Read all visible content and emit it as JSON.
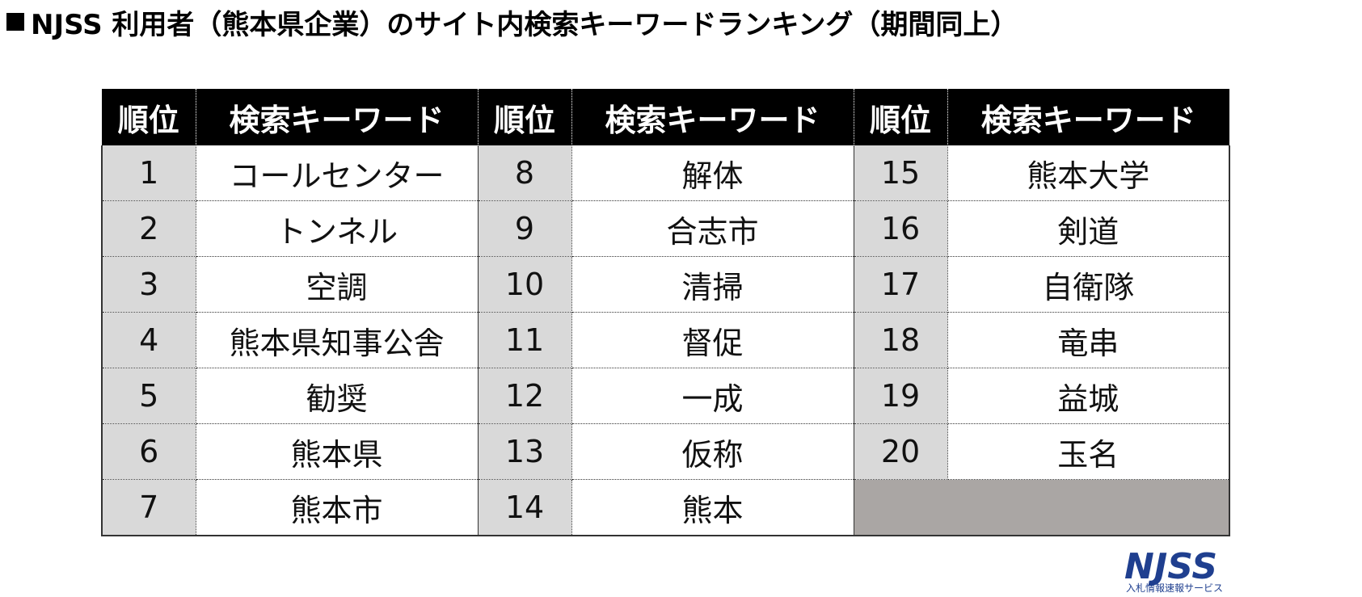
{
  "title": "NJSS 利用者（熊本県企業）のサイト内検索キーワードランキング（期間同上）",
  "headers": {
    "rank": "順位",
    "keyword": "検索キーワード"
  },
  "rankings": [
    [
      {
        "rank": "1",
        "keyword": "コールセンター"
      },
      {
        "rank": "8",
        "keyword": "解体"
      },
      {
        "rank": "15",
        "keyword": "熊本大学"
      }
    ],
    [
      {
        "rank": "2",
        "keyword": "トンネル"
      },
      {
        "rank": "9",
        "keyword": "合志市"
      },
      {
        "rank": "16",
        "keyword": "剣道"
      }
    ],
    [
      {
        "rank": "3",
        "keyword": "空調"
      },
      {
        "rank": "10",
        "keyword": "清掃"
      },
      {
        "rank": "17",
        "keyword": "自衛隊"
      }
    ],
    [
      {
        "rank": "4",
        "keyword": "熊本県知事公舎"
      },
      {
        "rank": "11",
        "keyword": "督促"
      },
      {
        "rank": "18",
        "keyword": "竜串"
      }
    ],
    [
      {
        "rank": "5",
        "keyword": "勧奨"
      },
      {
        "rank": "12",
        "keyword": "一成"
      },
      {
        "rank": "19",
        "keyword": "益城"
      }
    ],
    [
      {
        "rank": "6",
        "keyword": "熊本県"
      },
      {
        "rank": "13",
        "keyword": "仮称"
      },
      {
        "rank": "20",
        "keyword": "玉名"
      }
    ],
    [
      {
        "rank": "7",
        "keyword": "熊本市"
      },
      {
        "rank": "14",
        "keyword": "熊本"
      },
      null
    ]
  ],
  "logo": {
    "name": "NJSS",
    "tagline": "入札情報速報サービス",
    "color": "#1f3f8f"
  }
}
